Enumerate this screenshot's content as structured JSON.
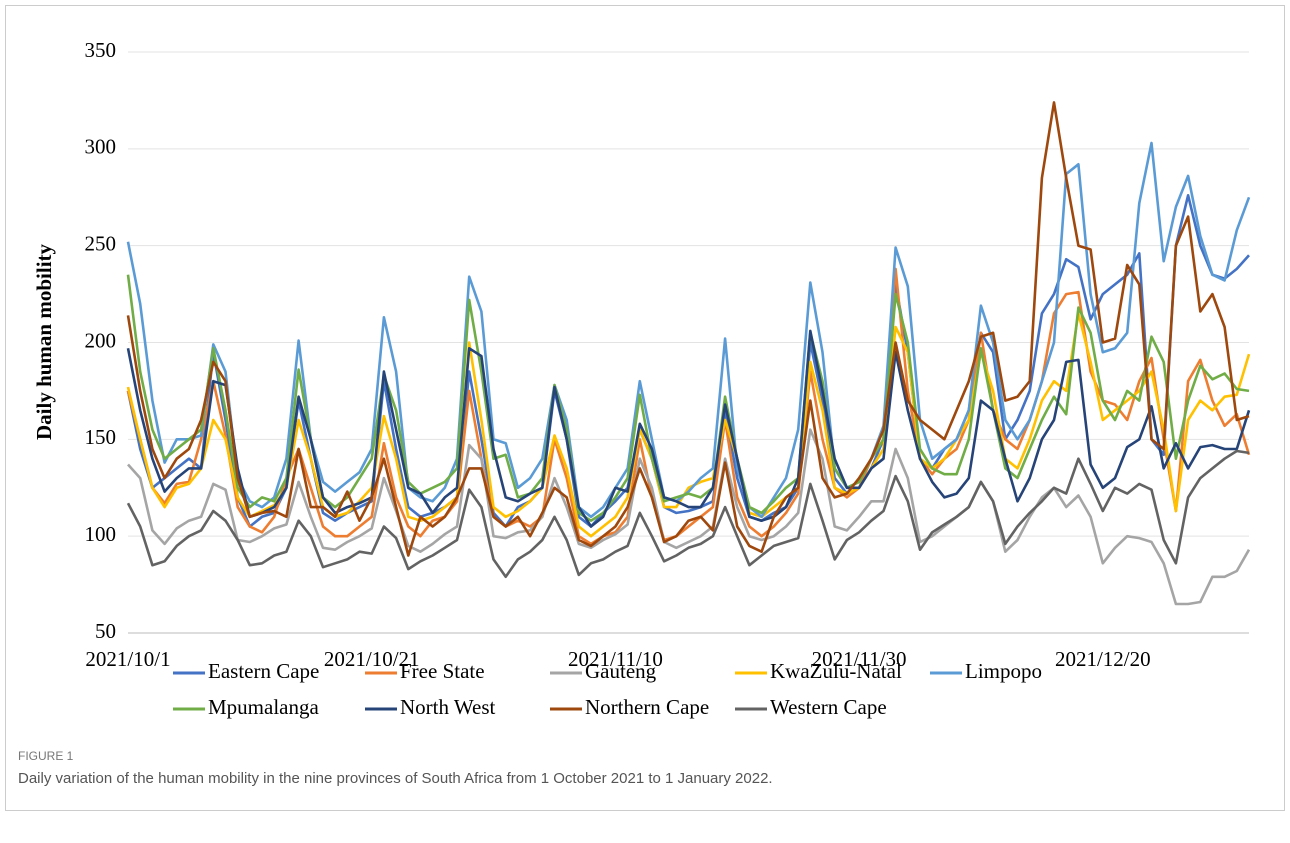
{
  "chart_data": {
    "type": "line",
    "y_label": "Daily human mobility",
    "figure_label": "FIGURE 1",
    "caption": "Daily variation of the human mobility in the nine provinces of South Africa from 1 October 2021 to 1 January 2022.",
    "categories": [
      "2021/10/1",
      null,
      null,
      null,
      null,
      null,
      null,
      null,
      null,
      null,
      null,
      null,
      null,
      null,
      null,
      null,
      null,
      null,
      null,
      null,
      "2021/10/21",
      null,
      null,
      null,
      null,
      null,
      null,
      null,
      null,
      null,
      null,
      null,
      null,
      null,
      null,
      null,
      null,
      null,
      null,
      null,
      "2021/11/10",
      null,
      null,
      null,
      null,
      null,
      null,
      null,
      null,
      null,
      null,
      null,
      null,
      null,
      null,
      null,
      null,
      null,
      null,
      null,
      "2021/11/30",
      null,
      null,
      null,
      null,
      null,
      null,
      null,
      null,
      null,
      null,
      null,
      null,
      null,
      null,
      null,
      null,
      null,
      null,
      null,
      "2021/12/20",
      null,
      null,
      null,
      null,
      null,
      null,
      null,
      null,
      null,
      null,
      null,
      null
    ],
    "ylim": [
      50,
      350
    ],
    "yticks": [
      50,
      100,
      150,
      200,
      250,
      300,
      350
    ],
    "grid": true,
    "series": [
      {
        "name": "Eastern Cape",
        "color": "#4472c4",
        "values": [
          175,
          145,
          125,
          130,
          135,
          140,
          135,
          195,
          160,
          120,
          105,
          110,
          112,
          125,
          170,
          140,
          112,
          108,
          112,
          115,
          118,
          180,
          145,
          115,
          110,
          112,
          115,
          120,
          185,
          150,
          112,
          105,
          115,
          118,
          125,
          175,
          150,
          110,
          105,
          112,
          118,
          125,
          155,
          140,
          115,
          112,
          113,
          115,
          118,
          165,
          130,
          110,
          108,
          112,
          115,
          125,
          200,
          170,
          130,
          122,
          125,
          135,
          150,
          230,
          195,
          140,
          135,
          145,
          150,
          165,
          205,
          195,
          150,
          160,
          175,
          215,
          225,
          243,
          239,
          212,
          225,
          230,
          235,
          246,
          150,
          142,
          250,
          276,
          250,
          235,
          233,
          238,
          245
        ]
      },
      {
        "name": "Free State",
        "color": "#ed7d31",
        "values": [
          175,
          150,
          125,
          117,
          127,
          128,
          150,
          180,
          152,
          115,
          105,
          102,
          110,
          130,
          145,
          125,
          105,
          100,
          100,
          105,
          110,
          148,
          120,
          105,
          100,
          108,
          110,
          118,
          175,
          140,
          110,
          105,
          108,
          105,
          110,
          150,
          130,
          100,
          96,
          100,
          102,
          110,
          150,
          120,
          98,
          100,
          105,
          110,
          115,
          160,
          120,
          105,
          100,
          105,
          112,
          122,
          185,
          150,
          125,
          120,
          125,
          140,
          150,
          238,
          175,
          140,
          132,
          140,
          145,
          160,
          205,
          165,
          150,
          145,
          160,
          180,
          215,
          225,
          226,
          185,
          170,
          168,
          160,
          180,
          192,
          150,
          113,
          180,
          191,
          170,
          157,
          163,
          142
        ]
      },
      {
        "name": "Gauteng",
        "color": "#a5a5a5",
        "values": [
          137,
          130,
          103,
          96,
          104,
          108,
          110,
          127,
          124,
          98,
          97,
          100,
          104,
          106,
          128,
          110,
          94,
          93,
          97,
          100,
          104,
          130,
          113,
          95,
          92,
          96,
          101,
          105,
          147,
          140,
          100,
          99,
          102,
          103,
          110,
          130,
          115,
          96,
          94,
          98,
          101,
          106,
          140,
          125,
          97,
          94,
          97,
          100,
          105,
          140,
          115,
          100,
          98,
          100,
          105,
          112,
          155,
          140,
          105,
          103,
          110,
          118,
          118,
          145,
          130,
          97,
          100,
          105,
          110,
          115,
          128,
          118,
          92,
          98,
          110,
          120,
          125,
          115,
          121,
          110,
          86,
          94,
          100,
          99,
          97,
          86,
          65,
          65,
          66,
          79,
          79,
          82,
          93
        ]
      },
      {
        "name": "KwaZulu-Natal",
        "color": "#ffc000",
        "values": [
          177,
          150,
          125,
          115,
          125,
          127,
          135,
          160,
          150,
          120,
          110,
          113,
          116,
          125,
          160,
          140,
          115,
          110,
          112,
          118,
          125,
          162,
          140,
          110,
          108,
          110,
          115,
          120,
          200,
          160,
          115,
          110,
          113,
          118,
          125,
          152,
          135,
          105,
          100,
          105,
          110,
          120,
          155,
          140,
          115,
          115,
          125,
          128,
          130,
          160,
          140,
          112,
          110,
          115,
          120,
          125,
          190,
          165,
          125,
          122,
          125,
          135,
          145,
          208,
          195,
          140,
          135,
          140,
          150,
          160,
          195,
          175,
          140,
          135,
          150,
          170,
          180,
          175,
          215,
          190,
          160,
          165,
          170,
          175,
          185,
          155,
          113,
          160,
          170,
          165,
          172,
          173,
          194
        ]
      },
      {
        "name": "Limpopo",
        "color": "#5b9bd5",
        "values": [
          252,
          220,
          170,
          138,
          150,
          150,
          152,
          199,
          185,
          130,
          118,
          115,
          120,
          140,
          201,
          150,
          128,
          123,
          128,
          133,
          145,
          213,
          185,
          125,
          120,
          118,
          125,
          140,
          234,
          216,
          150,
          148,
          125,
          130,
          140,
          178,
          160,
          115,
          110,
          115,
          125,
          135,
          180,
          150,
          120,
          118,
          123,
          130,
          135,
          202,
          135,
          115,
          110,
          120,
          130,
          155,
          231,
          195,
          135,
          125,
          128,
          140,
          157,
          249,
          229,
          160,
          140,
          145,
          150,
          165,
          219,
          200,
          160,
          150,
          160,
          180,
          200,
          287,
          292,
          225,
          195,
          197,
          205,
          272,
          303,
          242,
          270,
          286,
          255,
          235,
          232,
          258,
          275
        ]
      },
      {
        "name": "Mpumalanga",
        "color": "#70ad47",
        "values": [
          235,
          185,
          155,
          140,
          145,
          150,
          155,
          197,
          165,
          125,
          115,
          120,
          118,
          130,
          186,
          150,
          120,
          115,
          120,
          130,
          140,
          183,
          165,
          128,
          122,
          125,
          128,
          135,
          222,
          185,
          140,
          142,
          120,
          122,
          130,
          178,
          155,
          112,
          108,
          112,
          120,
          130,
          173,
          140,
          118,
          120,
          122,
          120,
          125,
          172,
          140,
          115,
          112,
          118,
          125,
          130,
          205,
          180,
          135,
          125,
          128,
          140,
          150,
          225,
          200,
          145,
          135,
          132,
          132,
          150,
          197,
          165,
          135,
          130,
          145,
          160,
          172,
          163,
          218,
          205,
          170,
          160,
          175,
          170,
          203,
          190,
          140,
          170,
          188,
          181,
          184,
          176,
          175
        ]
      },
      {
        "name": "North West",
        "color": "#264478",
        "values": [
          197,
          165,
          140,
          123,
          130,
          135,
          135,
          180,
          178,
          135,
          110,
          112,
          115,
          125,
          172,
          150,
          120,
          112,
          115,
          117,
          120,
          185,
          155,
          125,
          122,
          112,
          120,
          125,
          197,
          193,
          145,
          120,
          118,
          122,
          125,
          177,
          150,
          115,
          105,
          110,
          125,
          123,
          158,
          145,
          120,
          118,
          115,
          115,
          125,
          168,
          140,
          110,
          108,
          110,
          115,
          130,
          206,
          175,
          140,
          125,
          125,
          135,
          140,
          195,
          165,
          140,
          128,
          120,
          122,
          130,
          170,
          165,
          140,
          118,
          130,
          150,
          160,
          190,
          191,
          137,
          125,
          130,
          146,
          150,
          167,
          135,
          148,
          135,
          146,
          147,
          145,
          145,
          165
        ]
      },
      {
        "name": "Northern Cape",
        "color": "#9e480e",
        "values": [
          214,
          175,
          145,
          130,
          140,
          145,
          160,
          190,
          180,
          130,
          110,
          112,
          113,
          110,
          145,
          115,
          115,
          110,
          123,
          108,
          120,
          140,
          115,
          90,
          110,
          105,
          110,
          120,
          135,
          135,
          110,
          105,
          110,
          100,
          112,
          125,
          120,
          98,
          95,
          100,
          105,
          115,
          135,
          120,
          97,
          100,
          108,
          110,
          103,
          138,
          105,
          95,
          92,
          110,
          120,
          125,
          170,
          130,
          120,
          122,
          130,
          140,
          155,
          200,
          170,
          160,
          155,
          150,
          165,
          180,
          203,
          205,
          170,
          172,
          180,
          285,
          324,
          285,
          250,
          248,
          200,
          202,
          240,
          230,
          150,
          145,
          250,
          265,
          216,
          225,
          208,
          160,
          162
        ]
      },
      {
        "name": "Western Cape",
        "color": "#636363",
        "values": [
          117,
          105,
          85,
          87,
          95,
          100,
          103,
          113,
          108,
          98,
          85,
          86,
          90,
          92,
          108,
          100,
          84,
          86,
          88,
          92,
          91,
          105,
          99,
          83,
          87,
          90,
          94,
          98,
          124,
          115,
          88,
          79,
          88,
          92,
          98,
          110,
          98,
          80,
          86,
          88,
          92,
          95,
          112,
          100,
          87,
          90,
          94,
          96,
          100,
          115,
          100,
          85,
          90,
          95,
          97,
          99,
          127,
          108,
          88,
          98,
          102,
          108,
          113,
          131,
          118,
          93,
          102,
          106,
          110,
          115,
          128,
          118,
          96,
          105,
          112,
          118,
          125,
          122,
          140,
          127,
          113,
          125,
          122,
          127,
          124,
          98,
          86,
          120,
          130,
          135,
          140,
          144,
          143
        ]
      }
    ]
  }
}
